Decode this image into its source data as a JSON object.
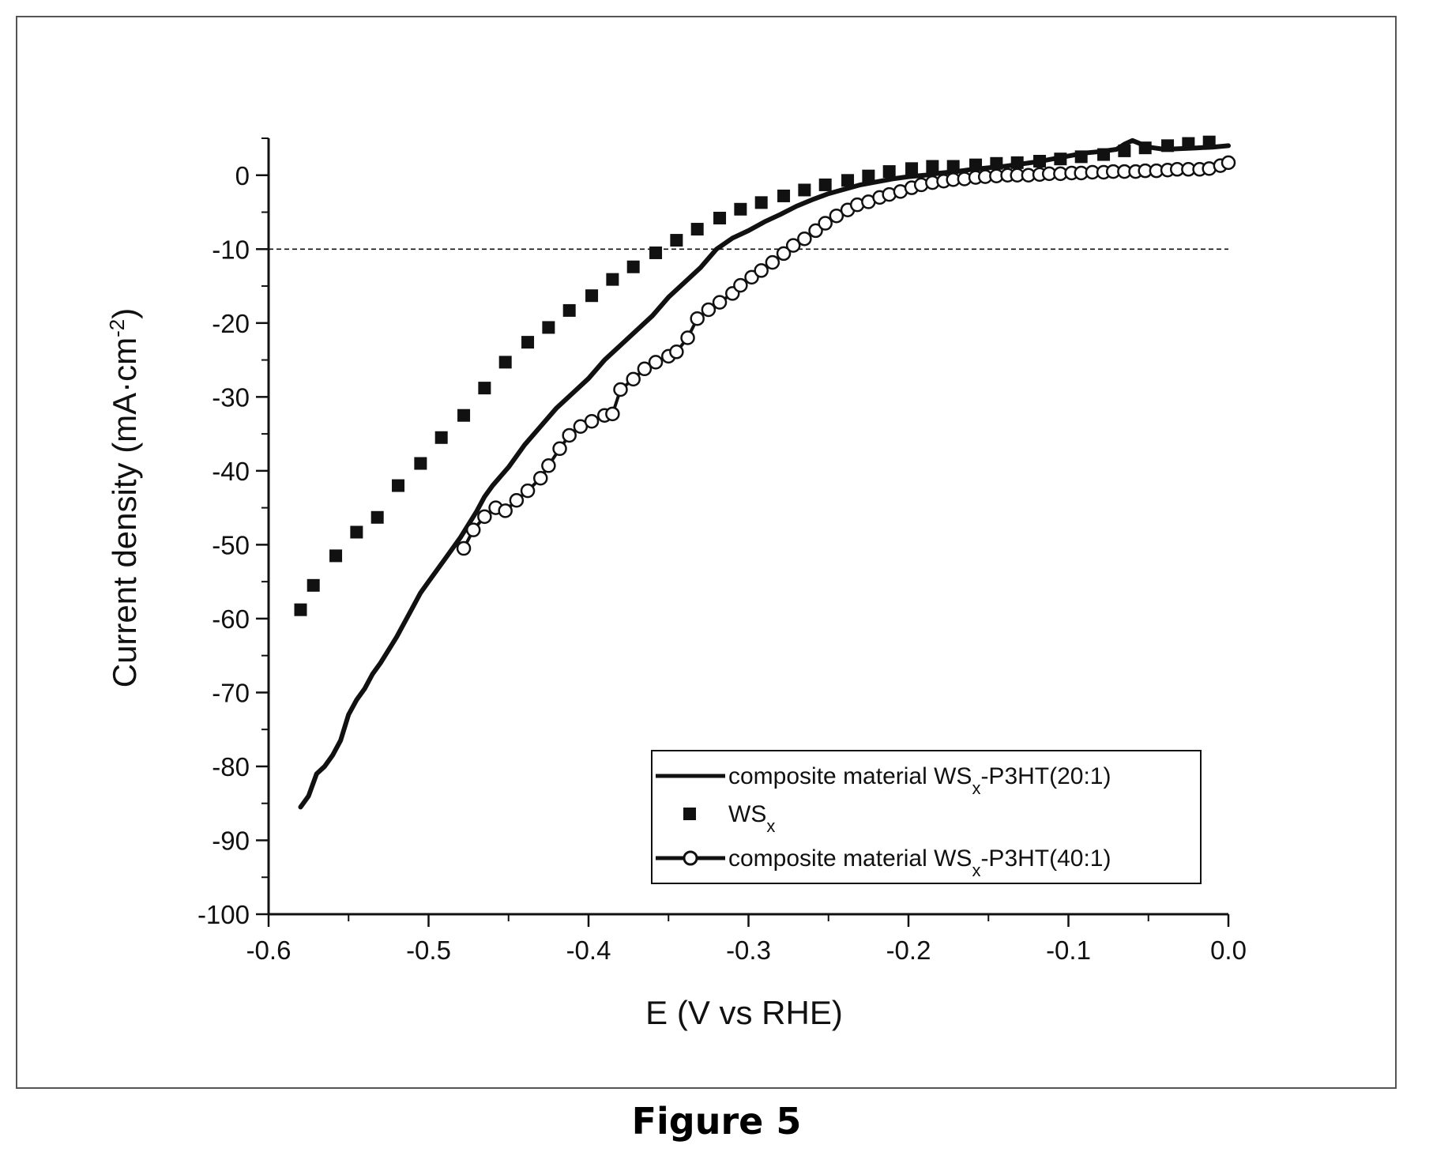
{
  "caption": "Figure 5",
  "chart_data": {
    "type": "line",
    "title": "",
    "xlabel": "E (V vs RHE)",
    "ylabel": {
      "main": "Current density (mA·cm",
      "sup": "-2",
      "tail": ")"
    },
    "xlim": [
      -0.6,
      0.0
    ],
    "ylim": [
      -100,
      5
    ],
    "x_ticks": [
      "-0.6",
      "-0.5",
      "-0.4",
      "-0.3",
      "-0.2",
      "-0.1",
      "0.0"
    ],
    "y_ticks": [
      "0",
      "-10",
      "-20",
      "-30",
      "-40",
      "-50",
      "-60",
      "-70",
      "-80",
      "-90",
      "-100"
    ],
    "reference_line": {
      "y": -10,
      "style": "dashed"
    },
    "grid": false,
    "legend_position": "bottom-right",
    "colors": {
      "series": "#111111",
      "frame": "#555555"
    },
    "series": [
      {
        "name": {
          "pre": "composite material WS",
          "sub": "x",
          "post": "-P3HT(20:1)"
        },
        "style": "line",
        "x": [
          -0.58,
          -0.575,
          -0.57,
          -0.565,
          -0.56,
          -0.555,
          -0.55,
          -0.545,
          -0.54,
          -0.535,
          -0.53,
          -0.52,
          -0.51,
          -0.505,
          -0.5,
          -0.49,
          -0.48,
          -0.47,
          -0.465,
          -0.46,
          -0.45,
          -0.44,
          -0.43,
          -0.42,
          -0.41,
          -0.4,
          -0.39,
          -0.38,
          -0.37,
          -0.36,
          -0.35,
          -0.34,
          -0.33,
          -0.32,
          -0.31,
          -0.3,
          -0.29,
          -0.28,
          -0.27,
          -0.26,
          -0.25,
          -0.24,
          -0.23,
          -0.22,
          -0.21,
          -0.2,
          -0.19,
          -0.18,
          -0.17,
          -0.16,
          -0.15,
          -0.14,
          -0.13,
          -0.12,
          -0.11,
          -0.1,
          -0.09,
          -0.08,
          -0.07,
          -0.065,
          -0.06,
          -0.05,
          -0.04,
          -0.03,
          -0.02,
          -0.01,
          0.0
        ],
        "y": [
          -85.5,
          -84,
          -81,
          -80,
          -78.5,
          -76.5,
          -73,
          -71,
          -69.5,
          -67.5,
          -66,
          -62.5,
          -58.5,
          -56.5,
          -55,
          -52,
          -49,
          -45.5,
          -43.5,
          -42,
          -39.5,
          -36.5,
          -34,
          -31.5,
          -29.5,
          -27.5,
          -25,
          -23,
          -21,
          -19,
          -16.5,
          -14.5,
          -12.5,
          -10,
          -8.5,
          -7.5,
          -6.3,
          -5.3,
          -4.2,
          -3.3,
          -2.5,
          -1.9,
          -1.3,
          -0.9,
          -0.5,
          -0.2,
          0.0,
          0.3,
          0.5,
          0.8,
          1.0,
          1.2,
          1.5,
          1.8,
          2.2,
          2.6,
          3.0,
          3.2,
          3.5,
          4.2,
          4.7,
          3.8,
          3.5,
          3.6,
          3.7,
          3.8,
          4.0
        ]
      },
      {
        "name": {
          "pre": "WS",
          "sub": "x",
          "post": ""
        },
        "style": "square",
        "x": [
          -0.58,
          -0.572,
          -0.558,
          -0.545,
          -0.532,
          -0.519,
          -0.505,
          -0.492,
          -0.478,
          -0.465,
          -0.452,
          -0.438,
          -0.425,
          -0.412,
          -0.398,
          -0.385,
          -0.372,
          -0.358,
          -0.345,
          -0.332,
          -0.318,
          -0.305,
          -0.292,
          -0.278,
          -0.265,
          -0.252,
          -0.238,
          -0.225,
          -0.212,
          -0.198,
          -0.185,
          -0.172,
          -0.158,
          -0.145,
          -0.132,
          -0.118,
          -0.105,
          -0.092,
          -0.078,
          -0.065,
          -0.052,
          -0.038,
          -0.025,
          -0.012
        ],
        "y": [
          -58.8,
          -55.5,
          -51.5,
          -48.3,
          -46.3,
          -42,
          -39,
          -35.5,
          -32.5,
          -28.8,
          -25.3,
          -22.6,
          -20.6,
          -18.3,
          -16.3,
          -14.1,
          -12.4,
          -10.5,
          -8.8,
          -7.3,
          -5.8,
          -4.6,
          -3.7,
          -2.8,
          -2.0,
          -1.3,
          -0.7,
          -0.1,
          0.5,
          0.9,
          1.2,
          1.2,
          1.4,
          1.6,
          1.7,
          1.9,
          2.2,
          2.5,
          2.8,
          3.3,
          3.7,
          4.0,
          4.3,
          4.5
        ]
      },
      {
        "name": {
          "pre": "composite material WS",
          "sub": "x",
          "post": "-P3HT(40:1)"
        },
        "style": "line-circle",
        "x": [
          -0.478,
          -0.472,
          -0.465,
          -0.458,
          -0.452,
          -0.445,
          -0.438,
          -0.43,
          -0.425,
          -0.418,
          -0.412,
          -0.405,
          -0.398,
          -0.39,
          -0.385,
          -0.38,
          -0.372,
          -0.365,
          -0.358,
          -0.35,
          -0.345,
          -0.338,
          -0.332,
          -0.325,
          -0.318,
          -0.31,
          -0.305,
          -0.298,
          -0.292,
          -0.285,
          -0.278,
          -0.272,
          -0.265,
          -0.258,
          -0.252,
          -0.245,
          -0.238,
          -0.232,
          -0.225,
          -0.218,
          -0.212,
          -0.205,
          -0.198,
          -0.192,
          -0.185,
          -0.178,
          -0.172,
          -0.165,
          -0.158,
          -0.152,
          -0.145,
          -0.138,
          -0.132,
          -0.125,
          -0.118,
          -0.112,
          -0.105,
          -0.098,
          -0.092,
          -0.085,
          -0.078,
          -0.072,
          -0.065,
          -0.058,
          -0.052,
          -0.045,
          -0.038,
          -0.032,
          -0.025,
          -0.018,
          -0.012,
          -0.005,
          0.0
        ],
        "y": [
          -50.5,
          -48,
          -46.2,
          -45,
          -45.4,
          -44,
          -42.7,
          -41,
          -39.3,
          -37,
          -35.2,
          -34,
          -33.3,
          -32.5,
          -32.3,
          -29,
          -27.6,
          -26.2,
          -25.3,
          -24.5,
          -23.9,
          -22,
          -19.4,
          -18.2,
          -17.2,
          -16,
          -14.9,
          -13.8,
          -12.9,
          -11.8,
          -10.6,
          -9.5,
          -8.6,
          -7.5,
          -6.5,
          -5.5,
          -4.7,
          -4.0,
          -3.6,
          -3.0,
          -2.6,
          -2.2,
          -1.7,
          -1.3,
          -1.0,
          -0.8,
          -0.6,
          -0.5,
          -0.3,
          -0.2,
          -0.1,
          0.0,
          0.0,
          0.0,
          0.1,
          0.2,
          0.2,
          0.3,
          0.3,
          0.4,
          0.4,
          0.5,
          0.5,
          0.5,
          0.6,
          0.6,
          0.7,
          0.8,
          0.8,
          0.8,
          0.9,
          1.3,
          1.7
        ]
      }
    ]
  }
}
